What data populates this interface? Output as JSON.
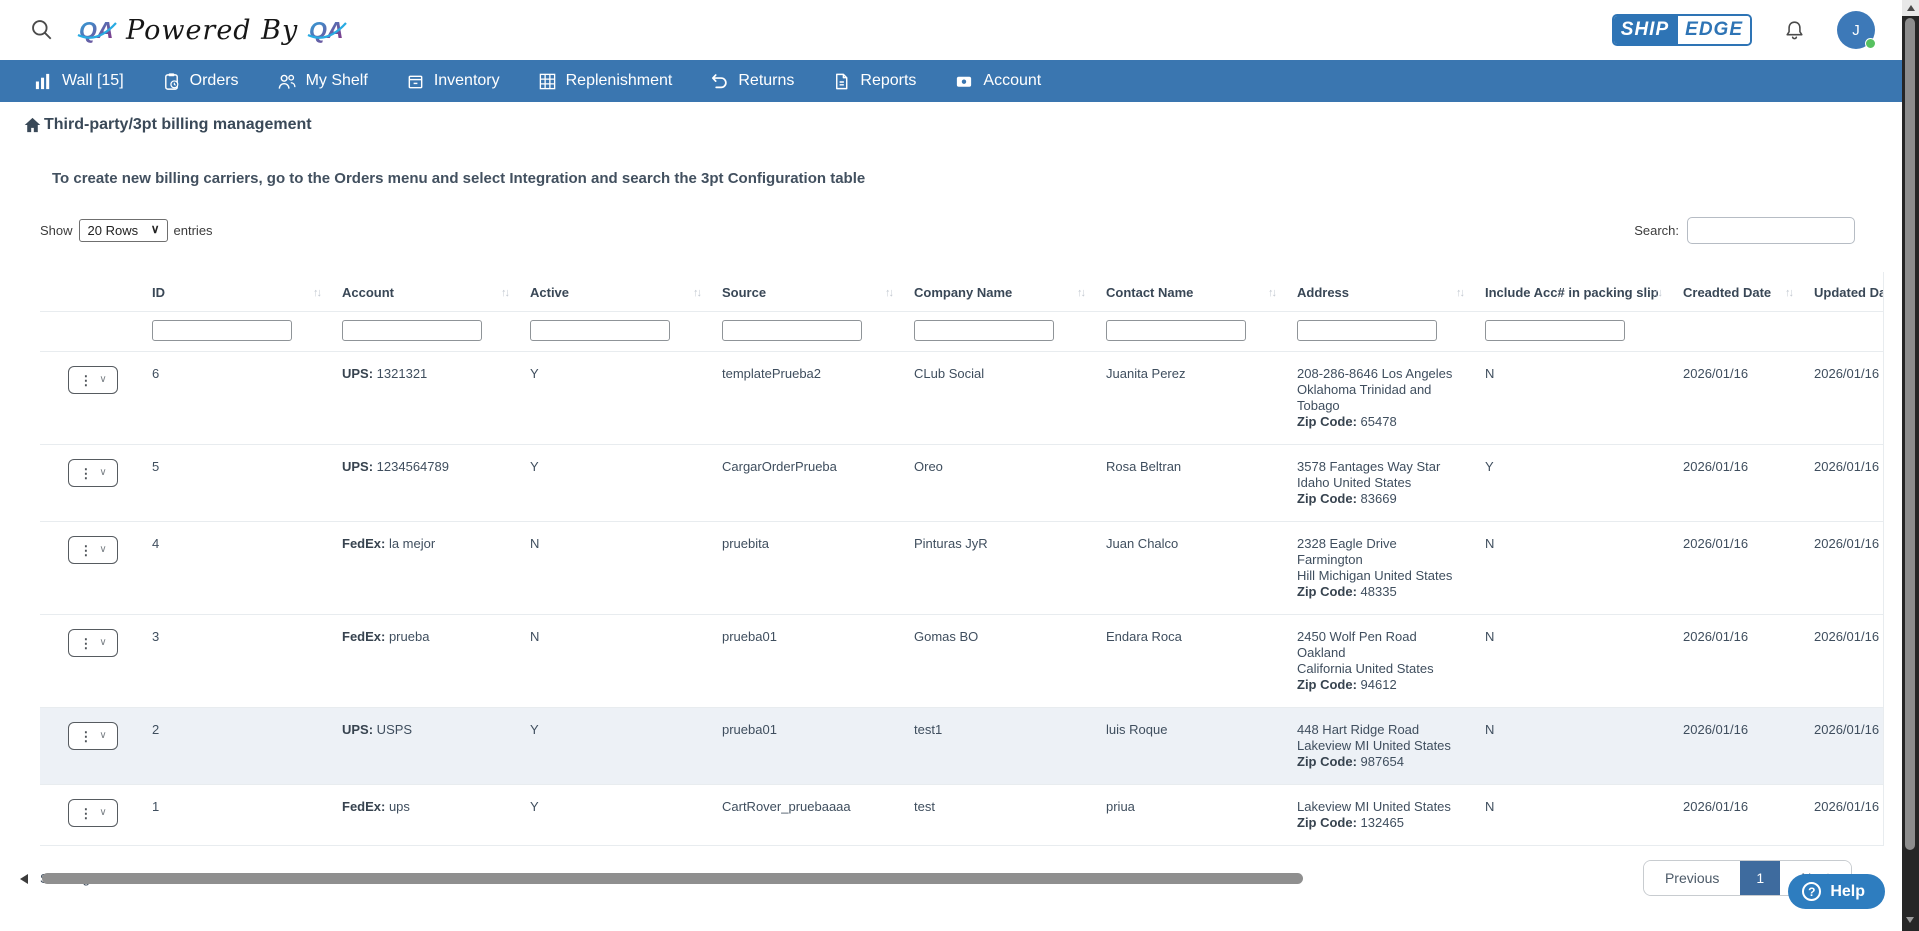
{
  "topbar": {
    "qa_text": "QA",
    "powered_by": "Powered By",
    "ship": "SHIP",
    "edge": "EDGE",
    "avatar_initial": "J"
  },
  "nav": {
    "items": [
      {
        "label": "Wall [15]",
        "icon": "wall"
      },
      {
        "label": "Orders",
        "icon": "orders"
      },
      {
        "label": "My Shelf",
        "icon": "shelf"
      },
      {
        "label": "Inventory",
        "icon": "inventory"
      },
      {
        "label": "Replenishment",
        "icon": "replenishment"
      },
      {
        "label": "Returns",
        "icon": "returns"
      },
      {
        "label": "Reports",
        "icon": "reports"
      },
      {
        "label": "Account",
        "icon": "account"
      }
    ]
  },
  "page": {
    "title": "Third-party/3pt billing management",
    "instruction": "To create new billing carriers, go to the Orders menu and select Integration and search the 3pt Configuration table"
  },
  "controls": {
    "show_label": "Show",
    "page_size": "20 Rows",
    "entries_label": "entries",
    "search_label": "Search:"
  },
  "icons": {
    "kebab_menu": "⋮",
    "chevron_down": "∨",
    "sort": "↑↓"
  },
  "colors": {
    "nav_blue": "#3a76b0",
    "shipedge_blue": "#2e74b5",
    "pagination_active": "#3e6b9e",
    "help_blue": "#2e7dbf",
    "avatar_green_dot": "#57c160"
  },
  "table": {
    "zip_label": "Zip Code:",
    "columns": [
      {
        "key": "action",
        "label": "",
        "sortable": false,
        "filter": false
      },
      {
        "key": "id",
        "label": "ID",
        "sortable": true,
        "filter": true
      },
      {
        "key": "account",
        "label": "Account",
        "sortable": true,
        "filter": true
      },
      {
        "key": "active",
        "label": "Active",
        "sortable": true,
        "filter": true
      },
      {
        "key": "source",
        "label": "Source",
        "sortable": true,
        "filter": true
      },
      {
        "key": "company",
        "label": "Company Name",
        "sortable": true,
        "filter": true
      },
      {
        "key": "contact",
        "label": "Contact Name",
        "sortable": true,
        "filter": true
      },
      {
        "key": "address",
        "label": "Address",
        "sortable": true,
        "filter": true
      },
      {
        "key": "include",
        "label": "Include Acc# in packing slip",
        "sortable": true,
        "filter": true
      },
      {
        "key": "created",
        "label": "Creadted Date",
        "sortable": true,
        "filter": false
      },
      {
        "key": "updated",
        "label": "Updated Date",
        "sortable": true,
        "filter": false
      }
    ],
    "rows": [
      {
        "id": "6",
        "carrier": "UPS:",
        "account": "1321321",
        "active": "Y",
        "source": "templatePrueba2",
        "company": "CLub Social",
        "contact": "Juanita Perez",
        "address": "208-286-8646 Los Angeles\nOklahoma Trinidad and\nTobago",
        "zip": "65478",
        "include": "N",
        "created": "2026/01/16",
        "updated": "2026/01/16"
      },
      {
        "id": "5",
        "carrier": "UPS:",
        "account": "1234564789",
        "active": "Y",
        "source": "CargarOrderPrueba",
        "company": "Oreo",
        "contact": "Rosa Beltran",
        "address": "3578 Fantages Way Star\nIdaho United States",
        "zip": "83669",
        "include": "Y",
        "created": "2026/01/16",
        "updated": "2026/01/16"
      },
      {
        "id": "4",
        "carrier": "FedEx:",
        "account": "la mejor",
        "active": "N",
        "source": "pruebita",
        "company": "Pinturas JyR",
        "contact": "Juan Chalco",
        "address": "2328 Eagle Drive Farmington\nHill Michigan United States",
        "zip": "48335",
        "include": "N",
        "created": "2026/01/16",
        "updated": "2026/01/16"
      },
      {
        "id": "3",
        "carrier": "FedEx:",
        "account": "prueba",
        "active": "N",
        "source": "prueba01",
        "company": "Gomas BO",
        "contact": "Endara Roca",
        "address": "2450 Wolf Pen Road Oakland\nCalifornia United States",
        "zip": "94612",
        "include": "N",
        "created": "2026/01/16",
        "updated": "2026/01/16"
      },
      {
        "id": "2",
        "carrier": "UPS:",
        "account": "USPS",
        "active": "Y",
        "source": "prueba01",
        "company": "test1",
        "contact": "luis Roque",
        "address": "448 Hart Ridge Road\nLakeview MI United States",
        "zip": "987654",
        "include": "N",
        "created": "2026/01/16",
        "updated": "2026/01/16"
      },
      {
        "id": "1",
        "carrier": "FedEx:",
        "account": "ups",
        "active": "Y",
        "source": "CartRover_pruebaaaa",
        "company": "test",
        "contact": "priua",
        "address": "Lakeview MI United States",
        "zip": "132465",
        "include": "N",
        "created": "2026/01/16",
        "updated": "2026/01/16"
      }
    ]
  },
  "footer": {
    "summary": "Showing 1 to 6 of 6 entries",
    "previous": "Previous",
    "current_page": "1",
    "next": "Next"
  },
  "help": {
    "label": "Help"
  }
}
